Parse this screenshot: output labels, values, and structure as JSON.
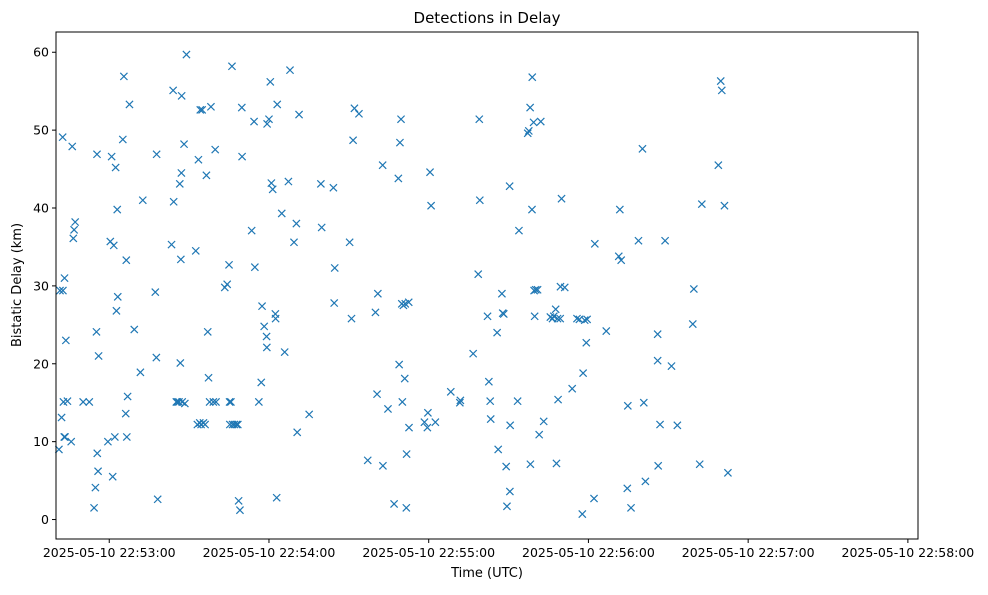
{
  "chart_data": {
    "type": "scatter",
    "title": "Detections in Delay",
    "xlabel": "Time (UTC)",
    "ylabel": "Bistatic Delay (km)",
    "x_ticks": [
      "2025-05-10 22:53:00",
      "2025-05-10 22:54:00",
      "2025-05-10 22:55:00",
      "2025-05-10 22:56:00",
      "2025-05-10 22:57:00",
      "2025-05-10 22:58:00"
    ],
    "y_ticks": [
      "0",
      "10",
      "20",
      "30",
      "40",
      "50",
      "60"
    ],
    "x_tick_seconds": [
      0,
      60,
      120,
      180,
      240,
      300
    ],
    "xlim_seconds": [
      -20,
      303.8
    ],
    "ylim": [
      -2.5,
      62.6
    ],
    "marker": "x",
    "color": "#1f77b4",
    "grid": false,
    "series": [
      {
        "points": [
          [
            -18.9,
            9.0
          ],
          [
            -18.5,
            29.4
          ],
          [
            -17.9,
            13.1
          ],
          [
            -17.5,
            49.1
          ],
          [
            -17.4,
            29.4
          ],
          [
            -17.2,
            15.1
          ],
          [
            -16.9,
            10.6
          ],
          [
            -16.8,
            31.0
          ],
          [
            -16.6,
            10.6
          ],
          [
            -16.3,
            23.0
          ],
          [
            -15.7,
            15.2
          ],
          [
            -14.3,
            10.0
          ],
          [
            -13.9,
            47.9
          ],
          [
            -13.5,
            36.1
          ],
          [
            -13.2,
            37.2
          ],
          [
            -12.8,
            38.2
          ],
          [
            -9.8,
            15.1
          ],
          [
            -7.5,
            15.1
          ],
          [
            -5.7,
            1.5
          ],
          [
            -5.2,
            4.1
          ],
          [
            -4.8,
            24.1
          ],
          [
            -4.6,
            46.9
          ],
          [
            -4.5,
            8.5
          ],
          [
            -4.2,
            6.2
          ],
          [
            -4.0,
            21.0
          ],
          [
            -0.5,
            10.0
          ],
          [
            0.4,
            35.7
          ],
          [
            0.9,
            46.6
          ],
          [
            1.3,
            5.5
          ],
          [
            1.7,
            35.2
          ],
          [
            2.1,
            10.6
          ],
          [
            2.4,
            45.2
          ],
          [
            2.7,
            26.8
          ],
          [
            3.0,
            39.8
          ],
          [
            3.2,
            28.6
          ],
          [
            5.1,
            48.8
          ],
          [
            5.5,
            56.9
          ],
          [
            6.2,
            13.6
          ],
          [
            6.4,
            33.3
          ],
          [
            6.6,
            10.6
          ],
          [
            6.9,
            15.8
          ],
          [
            7.6,
            53.3
          ],
          [
            9.4,
            24.4
          ],
          [
            11.7,
            18.9
          ],
          [
            12.6,
            41.0
          ],
          [
            17.3,
            29.2
          ],
          [
            17.7,
            20.8
          ],
          [
            17.8,
            46.9
          ],
          [
            18.2,
            2.6
          ],
          [
            23.4,
            35.3
          ],
          [
            24.0,
            55.1
          ],
          [
            24.2,
            40.8
          ],
          [
            25.2,
            15.1
          ],
          [
            25.6,
            15.1
          ],
          [
            26.2,
            15.1
          ],
          [
            26.5,
            43.1
          ],
          [
            26.7,
            20.1
          ],
          [
            26.9,
            33.4
          ],
          [
            27.1,
            44.5
          ],
          [
            27.2,
            54.4
          ],
          [
            27.4,
            15.1
          ],
          [
            28.1,
            48.2
          ],
          [
            28.4,
            14.9
          ],
          [
            29.0,
            59.7
          ],
          [
            32.5,
            34.5
          ],
          [
            33.1,
            12.2
          ],
          [
            33.5,
            46.2
          ],
          [
            34.0,
            12.4
          ],
          [
            34.2,
            52.6
          ],
          [
            34.5,
            12.2
          ],
          [
            34.9,
            52.6
          ],
          [
            35.4,
            12.4
          ],
          [
            36.0,
            12.2
          ],
          [
            36.5,
            44.2
          ],
          [
            37.0,
            24.1
          ],
          [
            37.3,
            18.2
          ],
          [
            37.7,
            15.1
          ],
          [
            38.2,
            53.0
          ],
          [
            39.1,
            15.1
          ],
          [
            39.8,
            47.5
          ],
          [
            40.1,
            15.1
          ],
          [
            43.4,
            29.8
          ],
          [
            44.3,
            30.2
          ],
          [
            45.0,
            32.7
          ],
          [
            45.2,
            15.1
          ],
          [
            45.3,
            12.2
          ],
          [
            45.7,
            15.1
          ],
          [
            46.1,
            58.2
          ],
          [
            46.3,
            12.2
          ],
          [
            47.0,
            12.2
          ],
          [
            47.8,
            12.2
          ],
          [
            48.3,
            12.2
          ],
          [
            48.6,
            2.4
          ],
          [
            49.1,
            1.2
          ],
          [
            49.8,
            52.9
          ],
          [
            49.9,
            46.6
          ],
          [
            53.5,
            37.1
          ],
          [
            54.4,
            51.1
          ],
          [
            54.7,
            32.4
          ],
          [
            56.2,
            15.1
          ],
          [
            57.1,
            17.6
          ],
          [
            57.4,
            27.4
          ],
          [
            58.2,
            24.8
          ],
          [
            59.1,
            23.5
          ],
          [
            59.2,
            22.1
          ],
          [
            59.3,
            50.8
          ],
          [
            60.0,
            51.4
          ],
          [
            60.5,
            56.2
          ],
          [
            60.9,
            43.2
          ],
          [
            61.4,
            42.4
          ],
          [
            62.4,
            26.4
          ],
          [
            62.5,
            25.8
          ],
          [
            62.9,
            2.8
          ],
          [
            63.1,
            53.3
          ],
          [
            64.8,
            39.3
          ],
          [
            65.9,
            21.5
          ],
          [
            67.3,
            43.4
          ],
          [
            67.9,
            57.7
          ],
          [
            69.4,
            35.6
          ],
          [
            70.3,
            38.0
          ],
          [
            70.6,
            11.2
          ],
          [
            71.3,
            52.0
          ],
          [
            75.1,
            13.5
          ],
          [
            79.5,
            43.1
          ],
          [
            79.8,
            37.5
          ],
          [
            84.2,
            42.6
          ],
          [
            84.5,
            27.8
          ],
          [
            84.7,
            32.3
          ],
          [
            90.3,
            35.6
          ],
          [
            91.0,
            25.8
          ],
          [
            91.6,
            48.7
          ],
          [
            92.1,
            52.8
          ],
          [
            93.8,
            52.1
          ],
          [
            97.1,
            7.6
          ],
          [
            100.0,
            26.6
          ],
          [
            100.6,
            16.1
          ],
          [
            100.9,
            29.0
          ],
          [
            102.7,
            45.5
          ],
          [
            102.8,
            6.9
          ],
          [
            104.7,
            14.2
          ],
          [
            107.0,
            2.0
          ],
          [
            108.6,
            43.8
          ],
          [
            108.9,
            19.9
          ],
          [
            109.2,
            48.4
          ],
          [
            109.6,
            51.4
          ],
          [
            109.9,
            27.7
          ],
          [
            110.1,
            15.1
          ],
          [
            110.5,
            27.5
          ],
          [
            111.0,
            18.1
          ],
          [
            111.2,
            27.7
          ],
          [
            111.6,
            1.5
          ],
          [
            111.7,
            8.4
          ],
          [
            112.5,
            27.9
          ],
          [
            112.6,
            11.8
          ],
          [
            118.4,
            12.5
          ],
          [
            119.5,
            11.8
          ],
          [
            119.7,
            13.7
          ],
          [
            120.5,
            44.6
          ],
          [
            120.9,
            40.3
          ],
          [
            122.5,
            12.5
          ],
          [
            128.3,
            16.4
          ],
          [
            131.7,
            15.0
          ],
          [
            131.9,
            15.3
          ],
          [
            136.7,
            21.3
          ],
          [
            138.6,
            31.5
          ],
          [
            139.0,
            51.4
          ],
          [
            139.2,
            41.0
          ],
          [
            142.1,
            26.1
          ],
          [
            142.6,
            17.7
          ],
          [
            143.1,
            15.2
          ],
          [
            143.3,
            12.9
          ],
          [
            145.7,
            24.0
          ],
          [
            146.1,
            9.0
          ],
          [
            147.5,
            29.0
          ],
          [
            147.8,
            26.5
          ],
          [
            148.2,
            26.4
          ],
          [
            149.1,
            6.8
          ],
          [
            149.4,
            1.7
          ],
          [
            150.4,
            42.8
          ],
          [
            150.5,
            3.6
          ],
          [
            150.6,
            12.1
          ],
          [
            153.4,
            15.2
          ],
          [
            153.9,
            37.1
          ],
          [
            157.2,
            49.6
          ],
          [
            157.6,
            49.9
          ],
          [
            158.1,
            52.9
          ],
          [
            158.2,
            7.1
          ],
          [
            158.8,
            39.8
          ],
          [
            158.9,
            56.8
          ],
          [
            159.4,
            51.0
          ],
          [
            159.6,
            29.4
          ],
          [
            159.8,
            26.1
          ],
          [
            160.2,
            29.5
          ],
          [
            160.9,
            29.5
          ],
          [
            161.5,
            10.9
          ],
          [
            162.1,
            51.1
          ],
          [
            163.2,
            12.6
          ],
          [
            165.7,
            26.0
          ],
          [
            166.5,
            25.8
          ],
          [
            167.0,
            26.1
          ],
          [
            167.7,
            27.0
          ],
          [
            168.0,
            7.2
          ],
          [
            168.4,
            25.8
          ],
          [
            168.6,
            15.4
          ],
          [
            169.4,
            25.8
          ],
          [
            169.5,
            29.9
          ],
          [
            169.9,
            41.2
          ],
          [
            171.1,
            29.8
          ],
          [
            173.9,
            16.8
          ],
          [
            175.7,
            25.8
          ],
          [
            176.6,
            25.7
          ],
          [
            177.7,
            0.7
          ],
          [
            178.0,
            18.8
          ],
          [
            178.6,
            25.6
          ],
          [
            179.2,
            22.7
          ],
          [
            179.5,
            25.7
          ],
          [
            182.1,
            2.7
          ],
          [
            182.4,
            35.4
          ],
          [
            186.7,
            24.2
          ],
          [
            191.4,
            33.8
          ],
          [
            191.8,
            39.8
          ],
          [
            192.3,
            33.3
          ],
          [
            194.6,
            4.0
          ],
          [
            194.8,
            14.6
          ],
          [
            196.0,
            1.5
          ],
          [
            198.8,
            35.8
          ],
          [
            200.3,
            47.6
          ],
          [
            200.8,
            15.0
          ],
          [
            201.4,
            4.9
          ],
          [
            206.0,
            23.8
          ],
          [
            206.0,
            20.4
          ],
          [
            206.2,
            6.9
          ],
          [
            206.9,
            12.2
          ],
          [
            208.8,
            35.8
          ],
          [
            211.2,
            19.7
          ],
          [
            213.4,
            12.1
          ],
          [
            219.2,
            25.1
          ],
          [
            219.6,
            29.6
          ],
          [
            221.8,
            7.1
          ],
          [
            222.6,
            40.5
          ],
          [
            228.8,
            45.5
          ],
          [
            229.7,
            56.3
          ],
          [
            230.1,
            55.1
          ],
          [
            231.1,
            40.3
          ],
          [
            232.4,
            6.0
          ]
        ]
      }
    ]
  }
}
